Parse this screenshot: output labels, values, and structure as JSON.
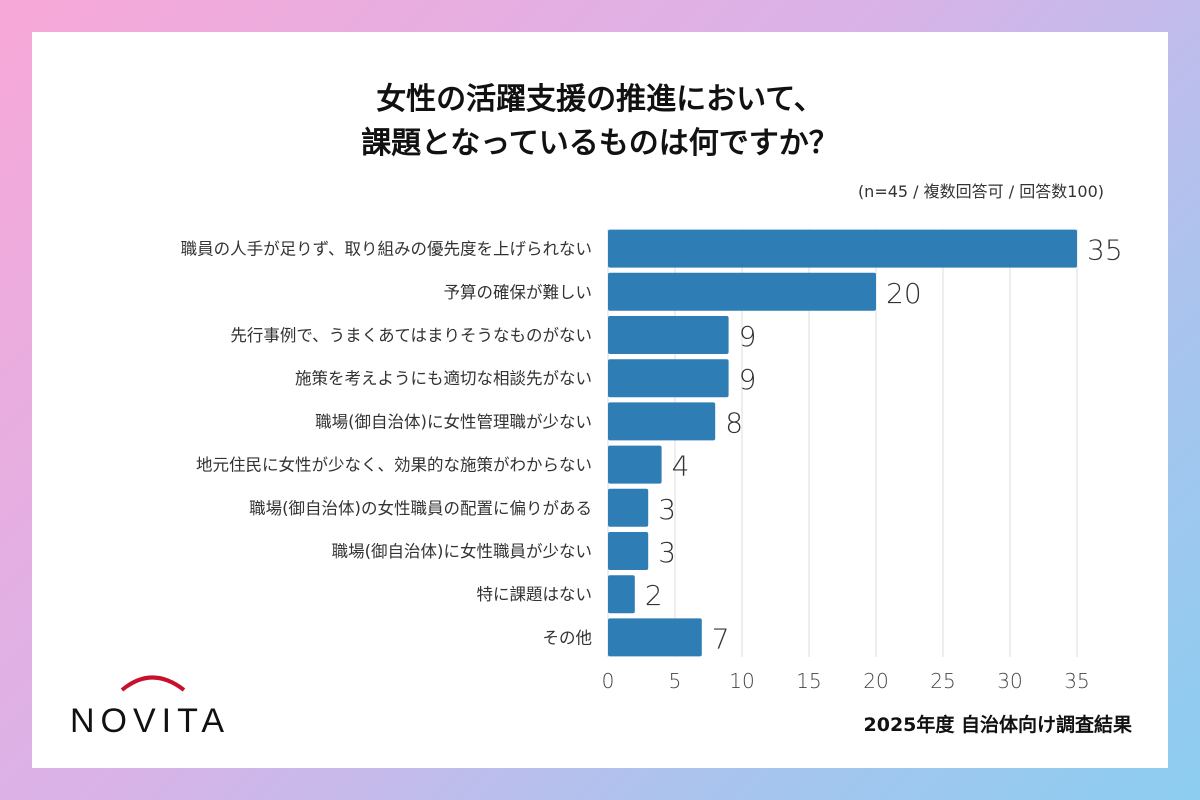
{
  "title_lines": [
    "女性の活躍支援の推進において、",
    "課題となっているものは何ですか？"
  ],
  "note": "(n=45 / 複数回答可 / 回答数100)",
  "footer": "2025年度 自治体向け調査結果",
  "logo": "NOVITA",
  "colors": {
    "bar": "#2e7db5",
    "logo_arc": "#c8102e",
    "grid": "#dddddd"
  },
  "chart_data": {
    "type": "bar",
    "orientation": "horizontal",
    "categories": [
      "職員の人手が足りず、取り組みの優先度を上げられない",
      "予算の確保が難しい",
      "先行事例で、うまくあてはまりそうなものがない",
      "施策を考えようにも適切な相談先がない",
      "職場(御自治体)に女性管理職が少ない",
      "地元住民に女性が少なく、効果的な施策がわからない",
      "職場(御自治体)の女性職員の配置に偏りがある",
      "職場(御自治体)に女性職員が少ない",
      "特に課題はない",
      "その他"
    ],
    "values": [
      35,
      20,
      9,
      9,
      8,
      4,
      3,
      3,
      2,
      7
    ],
    "xlim": [
      0,
      35
    ],
    "xticks": [
      0,
      5,
      10,
      15,
      20,
      25,
      30,
      35
    ],
    "grid": true,
    "data_labels": true
  }
}
